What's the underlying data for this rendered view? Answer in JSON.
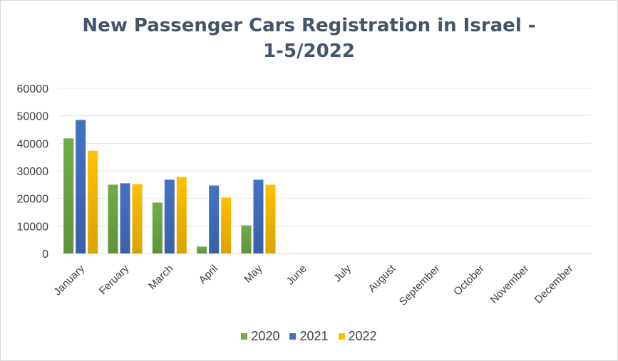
{
  "chart_data": {
    "type": "bar",
    "title_line1": "New Passenger Cars Registration in Israel -",
    "title_line2": "1-5/2022",
    "categories": [
      "January",
      "Feruary",
      "March",
      "April",
      "May",
      "June",
      "July",
      "August",
      "September",
      "October",
      "November",
      "December"
    ],
    "series": [
      {
        "name": "2020",
        "color": "#70ad47",
        "values": [
          41800,
          25000,
          18500,
          2500,
          10200,
          null,
          null,
          null,
          null,
          null,
          null,
          null
        ]
      },
      {
        "name": "2021",
        "color": "#4472c4",
        "values": [
          48500,
          25500,
          26800,
          24700,
          26800,
          null,
          null,
          null,
          null,
          null,
          null,
          null
        ]
      },
      {
        "name": "2022",
        "color": "#ffc000",
        "values": [
          37300,
          25200,
          27800,
          20300,
          25000,
          null,
          null,
          null,
          null,
          null,
          null,
          null
        ]
      }
    ],
    "ylim": [
      0,
      60000
    ],
    "yticks": [
      0,
      10000,
      20000,
      30000,
      40000,
      50000,
      60000
    ],
    "grid": true,
    "legend_position": "bottom"
  }
}
